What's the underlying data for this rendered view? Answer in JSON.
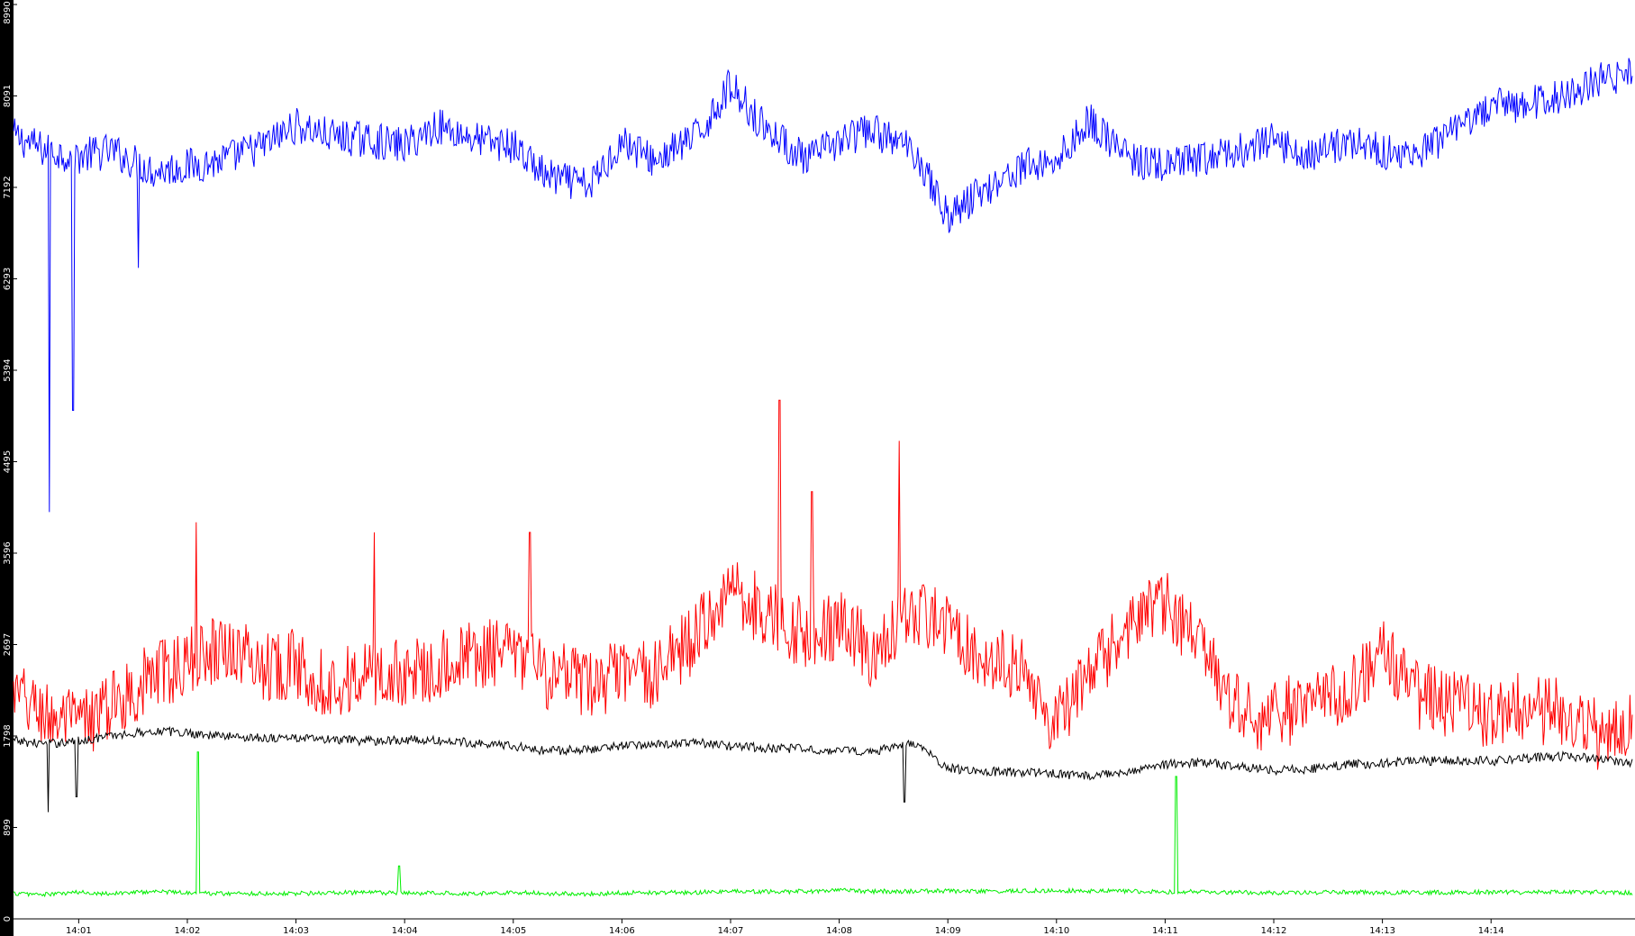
{
  "chart_data": {
    "type": "line",
    "title": "",
    "xlabel": "",
    "ylabel": "",
    "grid": false,
    "legend": "none",
    "x_range_minutes": [
      0.4,
      15.3
    ],
    "x_ticks": [
      "14:01",
      "14:02",
      "14:03",
      "14:04",
      "14:05",
      "14:06",
      "14:07",
      "14:08",
      "14:09",
      "14:10",
      "14:11",
      "14:12",
      "14:13",
      "14:14"
    ],
    "y_ticks": [
      "0",
      "899",
      "1798",
      "2697",
      "3596",
      "4495",
      "5394",
      "6293",
      "7192",
      "8091",
      "8990"
    ],
    "ylim": [
      0,
      8990
    ],
    "colors": {
      "axis_bar": "#000000",
      "axis_text": "#000000",
      "background": "#ffffff"
    },
    "series": [
      {
        "color": "#0000ff",
        "x": [
          0.4,
          0.7,
          1.0,
          1.3,
          1.7,
          2.0,
          2.3,
          2.7,
          3.0,
          3.3,
          3.7,
          4.0,
          4.3,
          4.7,
          5.0,
          5.3,
          5.7,
          6.0,
          6.3,
          6.7,
          7.0,
          7.3,
          7.7,
          8.0,
          8.3,
          8.7,
          9.0,
          9.3,
          9.7,
          10.0,
          10.3,
          10.7,
          11.0,
          11.3,
          11.7,
          12.0,
          12.3,
          12.7,
          13.0,
          13.3,
          13.7,
          14.0,
          14.3,
          14.7,
          15.0,
          15.3
        ],
        "y": [
          7700,
          7550,
          7500,
          7550,
          7350,
          7400,
          7450,
          7600,
          7800,
          7700,
          7650,
          7600,
          7800,
          7650,
          7600,
          7300,
          7200,
          7650,
          7450,
          7700,
          8200,
          7800,
          7450,
          7650,
          7750,
          7550,
          6900,
          7150,
          7400,
          7450,
          7850,
          7450,
          7400,
          7450,
          7550,
          7650,
          7500,
          7650,
          7550,
          7500,
          7750,
          8000,
          8000,
          8100,
          8250,
          8300
        ],
        "spikes": [
          {
            "x": 0.73,
            "y": 4000
          },
          {
            "x": 0.95,
            "y": 5000
          },
          {
            "x": 1.55,
            "y": 6400
          }
        ]
      },
      {
        "color": "#ff0000",
        "x": [
          0.4,
          0.7,
          1.0,
          1.3,
          1.7,
          2.0,
          2.3,
          2.7,
          3.0,
          3.3,
          3.7,
          4.0,
          4.3,
          4.7,
          5.0,
          5.3,
          5.7,
          6.0,
          6.3,
          6.7,
          7.0,
          7.3,
          7.7,
          8.0,
          8.3,
          8.7,
          9.0,
          9.3,
          9.7,
          10.0,
          10.3,
          10.7,
          11.0,
          11.3,
          11.7,
          12.0,
          12.3,
          12.7,
          13.0,
          13.3,
          13.7,
          14.0,
          14.3,
          14.7,
          15.0,
          15.3
        ],
        "y": [
          2200,
          2000,
          1900,
          2100,
          2400,
          2500,
          2700,
          2500,
          2500,
          2300,
          2400,
          2400,
          2500,
          2600,
          2600,
          2400,
          2300,
          2400,
          2400,
          2800,
          3300,
          3000,
          2800,
          2900,
          2600,
          3000,
          2900,
          2600,
          2400,
          1900,
          2400,
          2900,
          3100,
          2700,
          2000,
          2000,
          2100,
          2300,
          2600,
          2200,
          2100,
          2000,
          2100,
          2000,
          1800,
          1900
        ],
        "spikes": [
          {
            "x": 2.08,
            "y": 3900
          },
          {
            "x": 7.45,
            "y": 5100
          },
          {
            "x": 8.55,
            "y": 4700
          },
          {
            "x": 7.75,
            "y": 4200
          },
          {
            "x": 5.15,
            "y": 3800
          },
          {
            "x": 3.72,
            "y": 3800
          }
        ]
      },
      {
        "color": "#000000",
        "x": [
          0.4,
          0.7,
          1.0,
          1.3,
          1.7,
          2.0,
          2.3,
          2.7,
          3.0,
          3.3,
          3.7,
          4.0,
          4.3,
          4.7,
          5.0,
          5.3,
          5.7,
          6.0,
          6.3,
          6.7,
          7.0,
          7.3,
          7.7,
          8.0,
          8.3,
          8.7,
          9.0,
          9.3,
          9.7,
          10.0,
          10.3,
          10.7,
          11.0,
          11.3,
          11.7,
          12.0,
          12.3,
          12.7,
          13.0,
          13.3,
          13.7,
          14.0,
          14.3,
          14.7,
          15.0,
          15.3
        ],
        "y": [
          1750,
          1720,
          1750,
          1800,
          1850,
          1830,
          1800,
          1780,
          1780,
          1760,
          1750,
          1760,
          1750,
          1730,
          1700,
          1650,
          1670,
          1700,
          1720,
          1730,
          1700,
          1680,
          1670,
          1650,
          1650,
          1720,
          1480,
          1450,
          1440,
          1430,
          1400,
          1460,
          1520,
          1540,
          1500,
          1460,
          1470,
          1520,
          1530,
          1550,
          1560,
          1550,
          1580,
          1600,
          1570,
          1540
        ],
        "spikes": [
          {
            "x": 0.72,
            "y": 1050
          },
          {
            "x": 0.98,
            "y": 1200
          },
          {
            "x": 8.6,
            "y": 1150
          }
        ]
      },
      {
        "color": "#00ee00",
        "x": [
          0.4,
          0.7,
          1.0,
          1.3,
          1.7,
          2.0,
          2.3,
          2.7,
          3.0,
          3.3,
          3.7,
          4.0,
          4.3,
          4.7,
          5.0,
          5.3,
          5.7,
          6.0,
          6.3,
          6.7,
          7.0,
          7.3,
          7.7,
          8.0,
          8.3,
          8.7,
          9.0,
          9.3,
          9.7,
          10.0,
          10.3,
          10.7,
          11.0,
          11.3,
          11.7,
          12.0,
          12.3,
          12.7,
          13.0,
          13.3,
          13.7,
          14.0,
          14.3,
          14.7,
          15.0,
          15.3
        ],
        "y": [
          250,
          240,
          260,
          250,
          270,
          260,
          250,
          250,
          250,
          255,
          260,
          250,
          255,
          250,
          260,
          250,
          245,
          255,
          260,
          260,
          270,
          265,
          270,
          280,
          270,
          270,
          275,
          270,
          275,
          280,
          275,
          270,
          265,
          270,
          260,
          255,
          260,
          265,
          255,
          260,
          260,
          265,
          260,
          265,
          260,
          255
        ],
        "spikes": [
          {
            "x": 2.1,
            "y": 1640
          },
          {
            "x": 11.1,
            "y": 1400
          },
          {
            "x": 3.95,
            "y": 520
          }
        ]
      }
    ]
  }
}
